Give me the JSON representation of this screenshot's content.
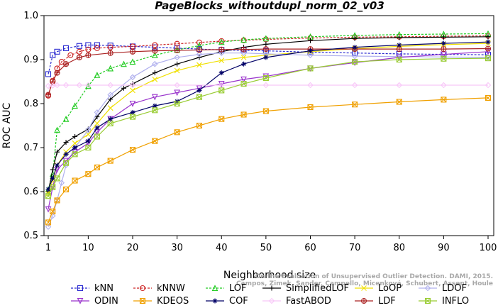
{
  "chart_data": {
    "type": "line",
    "title": "PageBlocks_withoutdupl_norm_02_v03",
    "xlabel": "Neighborhood size",
    "ylabel": "ROC AUC",
    "xlim": [
      1,
      100
    ],
    "ylim": [
      0.5,
      1.0
    ],
    "xticks": [
      1,
      10,
      20,
      30,
      40,
      50,
      60,
      70,
      80,
      90,
      100
    ],
    "yticks": [
      0.5,
      0.6,
      0.7,
      0.8,
      0.9,
      1.0
    ],
    "grid": false,
    "legend_position": "bottom",
    "credit_lines": [
      "Campos, Zimek, Sander, Campello, Micenková, Schubert, Assent, Houle",
      "On the Evaluation of Unsupervised Outlier Detection. DAMI, 2015."
    ],
    "series": [
      {
        "name": "kNN",
        "color": "#2a2ad0",
        "marker": "square",
        "dashed": true,
        "x": [
          1,
          2,
          3,
          5,
          8,
          10,
          12,
          15,
          20,
          25,
          30,
          35,
          40,
          45,
          50,
          60,
          70,
          80,
          90,
          100
        ],
        "y": [
          0.867,
          0.91,
          0.918,
          0.926,
          0.931,
          0.933,
          0.933,
          0.932,
          0.93,
          0.928,
          0.926,
          0.924,
          0.922,
          0.921,
          0.92,
          0.917,
          0.915,
          0.913,
          0.912,
          0.911
        ]
      },
      {
        "name": "kNNW",
        "color": "#cc2222",
        "marker": "circle",
        "dashed": true,
        "x": [
          1,
          2,
          3,
          4,
          6,
          8,
          10,
          12,
          15,
          20,
          25,
          30,
          35,
          40,
          45,
          50,
          60,
          70,
          80,
          90,
          100
        ],
        "y": [
          0.818,
          0.852,
          0.88,
          0.895,
          0.91,
          0.918,
          0.923,
          0.926,
          0.928,
          0.93,
          0.933,
          0.936,
          0.939,
          0.942,
          0.944,
          0.946,
          0.949,
          0.951,
          0.952,
          0.953,
          0.954
        ]
      },
      {
        "name": "LOF",
        "color": "#22cc22",
        "marker": "triangle-up",
        "dashed": true,
        "x": [
          1,
          2,
          3,
          5,
          7,
          10,
          12,
          15,
          18,
          20,
          25,
          30,
          35,
          40,
          45,
          50,
          60,
          70,
          80,
          90,
          100
        ],
        "y": [
          0.605,
          0.64,
          0.74,
          0.765,
          0.795,
          0.84,
          0.865,
          0.88,
          0.89,
          0.895,
          0.91,
          0.922,
          0.932,
          0.94,
          0.945,
          0.948,
          0.952,
          0.955,
          0.957,
          0.958,
          0.959
        ]
      },
      {
        "name": "SimplifiedLOF",
        "color": "#000000",
        "marker": "plus",
        "dashed": false,
        "x": [
          1,
          2,
          3,
          5,
          7,
          10,
          12,
          15,
          18,
          20,
          25,
          30,
          35,
          40,
          45,
          50,
          60,
          70,
          80,
          90,
          100
        ],
        "y": [
          0.6,
          0.65,
          0.69,
          0.712,
          0.725,
          0.742,
          0.77,
          0.81,
          0.835,
          0.845,
          0.87,
          0.89,
          0.905,
          0.918,
          0.928,
          0.935,
          0.943,
          0.948,
          0.95,
          0.951,
          0.952
        ]
      },
      {
        "name": "LoOP",
        "color": "#f0e000",
        "marker": "x",
        "dashed": false,
        "x": [
          1,
          2,
          3,
          5,
          7,
          10,
          12,
          15,
          20,
          25,
          30,
          35,
          40,
          45,
          50,
          60,
          70,
          80,
          90,
          100
        ],
        "y": [
          0.595,
          0.625,
          0.66,
          0.69,
          0.71,
          0.73,
          0.755,
          0.79,
          0.83,
          0.855,
          0.875,
          0.888,
          0.898,
          0.905,
          0.91,
          0.918,
          0.925,
          0.93,
          0.934,
          0.937
        ]
      },
      {
        "name": "LDOF",
        "color": "#b0b0ee",
        "marker": "diamond",
        "dashed": false,
        "x": [
          1,
          2,
          3,
          4,
          5,
          7,
          10,
          12,
          15,
          20,
          25,
          30,
          35,
          40,
          45,
          50,
          60,
          70,
          80,
          90,
          100
        ],
        "y": [
          0.52,
          0.545,
          0.58,
          0.62,
          0.66,
          0.7,
          0.74,
          0.78,
          0.82,
          0.86,
          0.89,
          0.905,
          0.912,
          0.915,
          0.915,
          0.913,
          0.91,
          0.908,
          0.907,
          0.906,
          0.905
        ]
      },
      {
        "name": "ODIN",
        "color": "#9933cc",
        "marker": "triangle-down",
        "dashed": false,
        "x": [
          1,
          2,
          3,
          5,
          7,
          10,
          12,
          15,
          20,
          25,
          30,
          35,
          40,
          45,
          50,
          60,
          70,
          80,
          90,
          100
        ],
        "y": [
          0.56,
          0.61,
          0.65,
          0.67,
          0.69,
          0.71,
          0.735,
          0.765,
          0.8,
          0.815,
          0.825,
          0.835,
          0.845,
          0.855,
          0.862,
          0.88,
          0.893,
          0.905,
          0.912,
          0.918
        ]
      },
      {
        "name": "KDEOS",
        "color": "#f0a000",
        "marker": "square-x",
        "dashed": false,
        "x": [
          1,
          2,
          3,
          5,
          7,
          10,
          12,
          15,
          20,
          25,
          30,
          35,
          40,
          45,
          50,
          60,
          70,
          80,
          90,
          100
        ],
        "y": [
          0.53,
          0.555,
          0.58,
          0.605,
          0.625,
          0.64,
          0.655,
          0.67,
          0.695,
          0.715,
          0.735,
          0.75,
          0.765,
          0.775,
          0.783,
          0.792,
          0.798,
          0.804,
          0.809,
          0.813
        ]
      },
      {
        "name": "LDF",
        "color": "#aa2222",
        "marker": "circle-plus",
        "dashed": false,
        "x": [
          1,
          2,
          3,
          5,
          8,
          10,
          15,
          20,
          25,
          30,
          35,
          40,
          45,
          50,
          60,
          70,
          80,
          90,
          100
        ],
        "y": [
          0.82,
          0.85,
          0.87,
          0.89,
          0.905,
          0.91,
          0.915,
          0.918,
          0.92,
          0.921,
          0.922,
          0.923,
          0.923,
          0.924,
          0.924,
          0.924,
          0.924,
          0.924,
          0.925
        ]
      },
      {
        "name": "COF",
        "color": "#000066",
        "marker": "asterisk",
        "dashed": false,
        "x": [
          1,
          2,
          3,
          5,
          7,
          10,
          12,
          15,
          20,
          25,
          30,
          35,
          40,
          45,
          50,
          60,
          70,
          80,
          90,
          100
        ],
        "y": [
          0.605,
          0.63,
          0.66,
          0.685,
          0.7,
          0.715,
          0.745,
          0.765,
          0.78,
          0.795,
          0.805,
          0.83,
          0.87,
          0.89,
          0.905,
          0.92,
          0.928,
          0.933,
          0.937,
          0.94
        ]
      },
      {
        "name": "FastABOD",
        "color": "#f8c8f8",
        "marker": "diamond",
        "dashed": false,
        "x": [
          1,
          2,
          3,
          5,
          8,
          10,
          15,
          20,
          30,
          40,
          50,
          60,
          70,
          80,
          90,
          100
        ],
        "y": [
          0.84,
          0.841,
          0.842,
          0.842,
          0.842,
          0.842,
          0.842,
          0.842,
          0.842,
          0.842,
          0.842,
          0.842,
          0.842,
          0.842,
          0.842,
          0.842
        ]
      },
      {
        "name": "INFLO",
        "color": "#99cc33",
        "marker": "square-x",
        "dashed": false,
        "x": [
          1,
          2,
          3,
          5,
          7,
          10,
          12,
          15,
          20,
          25,
          30,
          35,
          40,
          45,
          50,
          60,
          70,
          80,
          90,
          100
        ],
        "y": [
          0.59,
          0.61,
          0.63,
          0.665,
          0.685,
          0.7,
          0.725,
          0.755,
          0.77,
          0.785,
          0.8,
          0.815,
          0.83,
          0.845,
          0.858,
          0.88,
          0.895,
          0.9,
          0.902,
          0.903
        ]
      }
    ],
    "legend": [
      [
        "kNN",
        "kNNW",
        "LOF",
        "SimplifiedLOF",
        "LoOP",
        "LDOF"
      ],
      [
        "ODIN",
        "KDEOS",
        "COF",
        "FastABOD",
        "LDF",
        "INFLO"
      ]
    ]
  }
}
